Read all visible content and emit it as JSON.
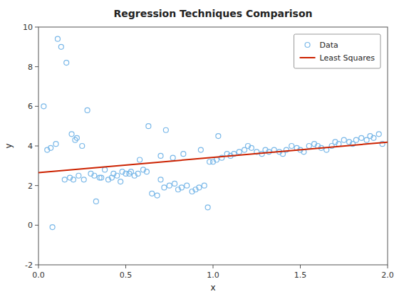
{
  "chart_data": {
    "type": "scatter",
    "title": "Regression Techniques Comparison",
    "xlabel": "x",
    "ylabel": "y",
    "xlim": [
      0,
      2
    ],
    "ylim": [
      -2,
      10
    ],
    "xticks": [
      {
        "value": 0,
        "label": "0.0"
      },
      0.5,
      {
        "value": 1,
        "label": "1.0"
      },
      1.5,
      {
        "value": 2,
        "label": "2.0"
      }
    ],
    "yticks": [
      -2,
      0,
      2,
      4,
      6,
      8,
      10
    ],
    "grid": false,
    "legend": "upper-right",
    "series": [
      {
        "name": "Data",
        "type": "scatter",
        "color": "#7ab8e8",
        "marker": "circle",
        "x": [
          0.05,
          0.11,
          0.13,
          0.16,
          0.19,
          0.22,
          0.03,
          0.07,
          0.25,
          0.28,
          0.1,
          0.21,
          0.3,
          0.32,
          0.35,
          0.38,
          0.4,
          0.42,
          0.45,
          0.47,
          0.5,
          0.52,
          0.53,
          0.55,
          0.57,
          0.6,
          0.62,
          0.65,
          0.68,
          0.7,
          0.72,
          0.75,
          0.78,
          0.8,
          0.82,
          0.85,
          0.88,
          0.9,
          0.92,
          0.95,
          0.97,
          1.0,
          1.02,
          1.05,
          1.08,
          1.1,
          1.12,
          1.15,
          1.18,
          1.2,
          1.22,
          1.25,
          1.28,
          1.3,
          1.32,
          1.35,
          1.38,
          1.4,
          1.42,
          1.45,
          1.48,
          1.5,
          1.52,
          1.55,
          1.58,
          1.6,
          1.62,
          1.65,
          1.68,
          1.7,
          1.72,
          1.75,
          1.78,
          1.8,
          1.82,
          1.85,
          1.88,
          1.9,
          1.92,
          1.95,
          0.15,
          0.18,
          0.2,
          0.23,
          0.26,
          0.08,
          0.33,
          0.36,
          0.43,
          0.48,
          0.58,
          0.63,
          0.7,
          0.73,
          0.77,
          0.83,
          0.93,
          0.98,
          1.03,
          1.97
        ],
        "values": [
          3.8,
          9.4,
          9.0,
          8.2,
          4.6,
          4.4,
          6.0,
          3.9,
          4.0,
          5.8,
          4.1,
          4.3,
          2.6,
          2.5,
          2.4,
          2.8,
          2.3,
          2.4,
          2.5,
          2.2,
          2.6,
          2.6,
          2.7,
          2.5,
          2.6,
          2.8,
          2.7,
          1.6,
          1.5,
          2.3,
          1.9,
          2.0,
          2.1,
          1.8,
          1.9,
          2.0,
          1.7,
          1.8,
          1.9,
          2.0,
          0.9,
          3.2,
          3.3,
          3.4,
          3.6,
          3.5,
          3.6,
          3.7,
          3.8,
          4.0,
          3.9,
          3.7,
          3.6,
          3.8,
          3.7,
          3.8,
          3.7,
          3.6,
          3.8,
          4.0,
          3.9,
          3.8,
          3.7,
          4.0,
          4.1,
          4.0,
          3.9,
          3.8,
          4.0,
          4.2,
          4.1,
          4.3,
          4.2,
          4.1,
          4.3,
          4.4,
          4.3,
          4.5,
          4.4,
          4.6,
          2.3,
          2.4,
          2.3,
          2.5,
          2.3,
          -0.1,
          1.2,
          2.4,
          2.6,
          2.7,
          3.3,
          5.0,
          3.5,
          4.8,
          3.4,
          3.6,
          3.8,
          3.2,
          4.5,
          4.1
        ]
      },
      {
        "name": "Least Squares",
        "type": "line",
        "color": "#cc2200",
        "line_style": "solid",
        "x": [
          0,
          2
        ],
        "values": [
          2.65,
          4.19
        ]
      }
    ]
  }
}
